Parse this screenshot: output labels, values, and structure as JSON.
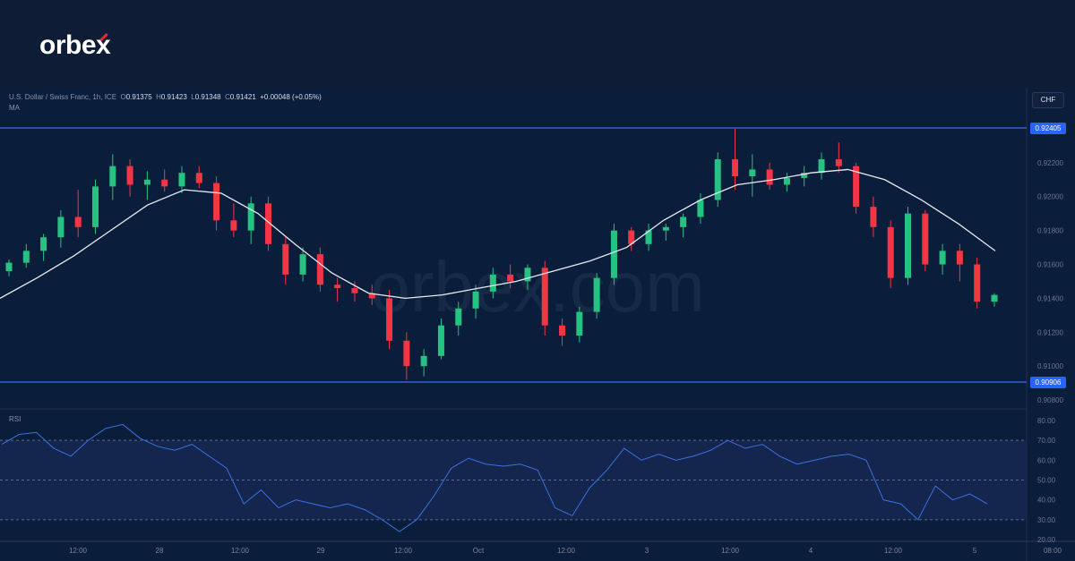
{
  "brand": {
    "logo": "orbex",
    "watermark": "orbex.com",
    "accent": "#e2283a"
  },
  "chart_data": {
    "type": "candlestick",
    "symbol": "U.S. Dollar / Swiss Franc, 1h, ICE",
    "ohlc_readout": {
      "o_label": "O",
      "o": "0.91375",
      "h_label": "H",
      "h": "0.91423",
      "l_label": "L",
      "l": "0.91348",
      "c_label": "C",
      "c": "0.91421",
      "change": "+0.00048 (+0.05%)"
    },
    "currency": "CHF",
    "indicator_label": "MA",
    "ylim": [
      0.9078,
      0.9252
    ],
    "y_ticks": [
      "0.92200",
      "0.92000",
      "0.91800",
      "0.91600",
      "0.91400",
      "0.91200",
      "0.91000",
      "0.90800"
    ],
    "levels": [
      {
        "value": 0.92405,
        "label": "0.92405"
      },
      {
        "value": 0.90906,
        "label": "0.90906"
      }
    ],
    "x_ticks": [
      "12:00",
      "28",
      "12:00",
      "29",
      "12:00",
      "Oct",
      "12:00",
      "3",
      "12:00",
      "4",
      "12:00",
      "5",
      "08:00"
    ],
    "up_color": "#26c281",
    "down_color": "#f23645",
    "ohlc": [
      [
        0.9156,
        0.9163,
        0.9153,
        0.9161
      ],
      [
        0.9161,
        0.9172,
        0.9158,
        0.9168
      ],
      [
        0.9168,
        0.9178,
        0.9162,
        0.9176
      ],
      [
        0.9176,
        0.9192,
        0.917,
        0.9188
      ],
      [
        0.9188,
        0.9204,
        0.9176,
        0.9182
      ],
      [
        0.9182,
        0.921,
        0.9178,
        0.9206
      ],
      [
        0.9206,
        0.9225,
        0.9198,
        0.9218
      ],
      [
        0.9218,
        0.9222,
        0.92,
        0.9207
      ],
      [
        0.9207,
        0.9215,
        0.9198,
        0.921
      ],
      [
        0.921,
        0.9216,
        0.9203,
        0.9206
      ],
      [
        0.9206,
        0.9218,
        0.9202,
        0.9214
      ],
      [
        0.9214,
        0.9218,
        0.9205,
        0.9208
      ],
      [
        0.9208,
        0.9212,
        0.918,
        0.9186
      ],
      [
        0.9186,
        0.9196,
        0.9176,
        0.918
      ],
      [
        0.918,
        0.92,
        0.9172,
        0.9196
      ],
      [
        0.9196,
        0.92,
        0.9168,
        0.9172
      ],
      [
        0.9172,
        0.9176,
        0.9148,
        0.9154
      ],
      [
        0.9154,
        0.917,
        0.915,
        0.9166
      ],
      [
        0.9166,
        0.917,
        0.9144,
        0.9148
      ],
      [
        0.9148,
        0.9152,
        0.9138,
        0.9146
      ],
      [
        0.9146,
        0.915,
        0.9138,
        0.9143
      ],
      [
        0.9143,
        0.9148,
        0.9136,
        0.914
      ],
      [
        0.914,
        0.9145,
        0.911,
        0.9115
      ],
      [
        0.9115,
        0.912,
        0.9092,
        0.91
      ],
      [
        0.91,
        0.911,
        0.9094,
        0.9106
      ],
      [
        0.9106,
        0.9128,
        0.9104,
        0.9124
      ],
      [
        0.9124,
        0.9138,
        0.9118,
        0.9134
      ],
      [
        0.9134,
        0.9148,
        0.9128,
        0.9144
      ],
      [
        0.9144,
        0.9158,
        0.914,
        0.9154
      ],
      [
        0.9154,
        0.916,
        0.9146,
        0.915
      ],
      [
        0.915,
        0.916,
        0.9145,
        0.9158
      ],
      [
        0.9158,
        0.9162,
        0.9118,
        0.9124
      ],
      [
        0.9124,
        0.9128,
        0.9112,
        0.9118
      ],
      [
        0.9118,
        0.9135,
        0.9114,
        0.9132
      ],
      [
        0.9132,
        0.9155,
        0.9128,
        0.9152
      ],
      [
        0.9152,
        0.9184,
        0.9148,
        0.918
      ],
      [
        0.918,
        0.9182,
        0.9168,
        0.9172
      ],
      [
        0.9172,
        0.9184,
        0.9168,
        0.918
      ],
      [
        0.918,
        0.9184,
        0.9174,
        0.9182
      ],
      [
        0.9182,
        0.919,
        0.9176,
        0.9188
      ],
      [
        0.9188,
        0.9202,
        0.9184,
        0.9198
      ],
      [
        0.9198,
        0.9226,
        0.9194,
        0.9222
      ],
      [
        0.9222,
        0.924,
        0.9204,
        0.9212
      ],
      [
        0.9212,
        0.9225,
        0.92,
        0.9216
      ],
      [
        0.9216,
        0.922,
        0.9204,
        0.9207
      ],
      [
        0.9207,
        0.9214,
        0.9203,
        0.9211
      ],
      [
        0.9211,
        0.9218,
        0.9206,
        0.9214
      ],
      [
        0.9214,
        0.9226,
        0.921,
        0.9222
      ],
      [
        0.9222,
        0.9232,
        0.9214,
        0.9218
      ],
      [
        0.9218,
        0.922,
        0.919,
        0.9194
      ],
      [
        0.9194,
        0.92,
        0.9176,
        0.9182
      ],
      [
        0.9182,
        0.9186,
        0.9146,
        0.9152
      ],
      [
        0.9152,
        0.9194,
        0.9148,
        0.919
      ],
      [
        0.919,
        0.9192,
        0.9156,
        0.916
      ],
      [
        0.916,
        0.9172,
        0.9154,
        0.9168
      ],
      [
        0.9168,
        0.9172,
        0.915,
        0.916
      ],
      [
        0.916,
        0.9164,
        0.9134,
        0.9138
      ],
      [
        0.9138,
        0.9143,
        0.9135,
        0.9142
      ]
    ],
    "ma": [
      0.914,
      0.9152,
      0.9165,
      0.918,
      0.9195,
      0.9204,
      0.9202,
      0.919,
      0.9172,
      0.9155,
      0.9143,
      0.914,
      0.9142,
      0.9146,
      0.915,
      0.9156,
      0.9162,
      0.917,
      0.9186,
      0.9198,
      0.9207,
      0.921,
      0.9214,
      0.9216,
      0.921,
      0.9198,
      0.9184,
      0.9168
    ],
    "rsi": {
      "label": "RSI",
      "ylim": [
        15,
        85
      ],
      "y_ticks": [
        "80.00",
        "70.00",
        "60.00",
        "50.00",
        "40.00",
        "30.00",
        "20.00"
      ],
      "bands": [
        30,
        70
      ],
      "mid": 50,
      "color": "#3d6fe0",
      "values": [
        68,
        73,
        74,
        66,
        62,
        70,
        76,
        78,
        71,
        67,
        65,
        68,
        62,
        56,
        38,
        45,
        36,
        40,
        38,
        36,
        38,
        35,
        30,
        24,
        30,
        42,
        56,
        61,
        58,
        57,
        58,
        55,
        36,
        32,
        46,
        55,
        66,
        60,
        63,
        60,
        62,
        65,
        70,
        66,
        68,
        62,
        58,
        60,
        62,
        63,
        60,
        40,
        38,
        30,
        47,
        40,
        43,
        38
      ]
    }
  }
}
